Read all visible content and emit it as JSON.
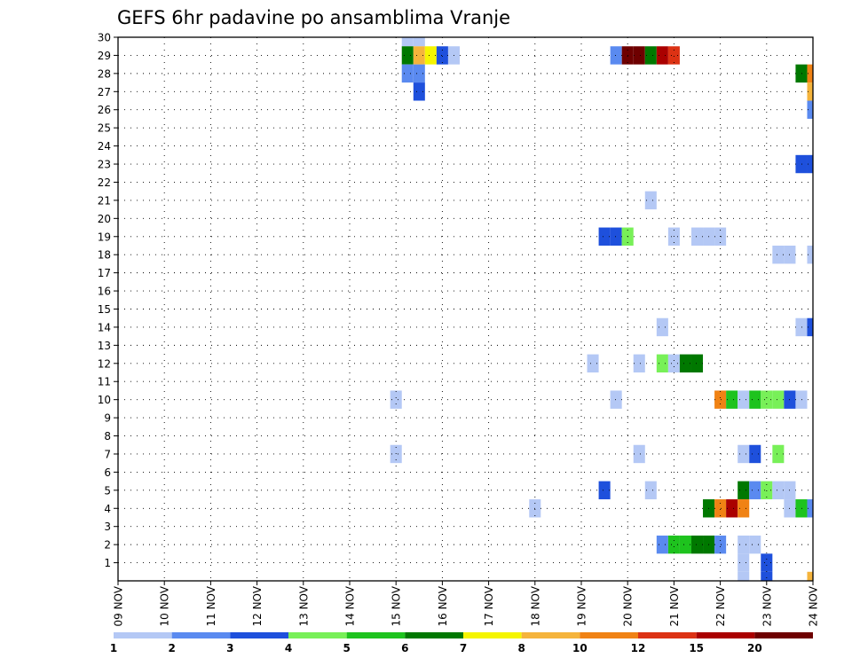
{
  "chart_data": {
    "type": "heatmap",
    "title": "GEFS 6hr padavine po ansamblima Vranje",
    "y_tick_labels": [
      "1",
      "2",
      "3",
      "4",
      "5",
      "6",
      "7",
      "8",
      "9",
      "10",
      "11",
      "12",
      "13",
      "14",
      "15",
      "16",
      "17",
      "18",
      "19",
      "20",
      "21",
      "22",
      "23",
      "24",
      "25",
      "26",
      "27",
      "28",
      "29",
      "30"
    ],
    "x_tick_labels": [
      "09 NOV",
      "10 NOV",
      "11 NOV",
      "12 NOV",
      "13 NOV",
      "14 NOV",
      "15 NOV",
      "16 NOV",
      "17 NOV",
      "18 NOV",
      "19 NOV",
      "20 NOV",
      "21 NOV",
      "22 NOV",
      "23 NOV",
      "24 NOV"
    ],
    "x_range_days": [
      0,
      15
    ],
    "y_range": [
      0,
      30
    ],
    "grid": "dotted",
    "colorbar": {
      "labels": [
        "1",
        "2",
        "3",
        "4",
        "5",
        "6",
        "7",
        "8",
        "10",
        "12",
        "15",
        "20"
      ],
      "colors": [
        "#b4c8f5",
        "#5a8af0",
        "#1e50dc",
        "#78f058",
        "#1ec31e",
        "#007800",
        "#f5f500",
        "#f5b43c",
        "#f08214",
        "#dc3214",
        "#aa0000",
        "#6e0000"
      ]
    },
    "cells": [
      {
        "d": 6.25,
        "m": 30,
        "c": 0
      },
      {
        "d": 6.5,
        "m": 30,
        "c": 0
      },
      {
        "d": 6.25,
        "m": 29,
        "c": 5
      },
      {
        "d": 6.5,
        "m": 29,
        "c": 7
      },
      {
        "d": 6.75,
        "m": 29,
        "c": 6
      },
      {
        "d": 7.0,
        "m": 29,
        "c": 2
      },
      {
        "d": 7.25,
        "m": 29,
        "c": 0
      },
      {
        "d": 10.75,
        "m": 29,
        "c": 1
      },
      {
        "d": 11.0,
        "m": 29,
        "c": 11
      },
      {
        "d": 11.25,
        "m": 29,
        "c": 11
      },
      {
        "d": 11.5,
        "m": 29,
        "c": 5
      },
      {
        "d": 11.75,
        "m": 29,
        "c": 10
      },
      {
        "d": 12.0,
        "m": 29,
        "c": 9
      },
      {
        "d": 6.25,
        "m": 28,
        "c": 1
      },
      {
        "d": 6.5,
        "m": 28,
        "c": 1
      },
      {
        "d": 14.75,
        "m": 28,
        "c": 5
      },
      {
        "d": 15.0,
        "m": 28,
        "c": 8
      },
      {
        "d": 6.5,
        "m": 27,
        "c": 2
      },
      {
        "d": 15.0,
        "m": 27,
        "c": 7
      },
      {
        "d": 15.0,
        "m": 26,
        "c": 1
      },
      {
        "d": 14.75,
        "m": 23,
        "c": 2
      },
      {
        "d": 15.0,
        "m": 23,
        "c": 2
      },
      {
        "d": 11.5,
        "m": 21,
        "c": 0
      },
      {
        "d": 10.5,
        "m": 19,
        "c": 2
      },
      {
        "d": 10.75,
        "m": 19,
        "c": 2
      },
      {
        "d": 11.0,
        "m": 19,
        "c": 3
      },
      {
        "d": 12.0,
        "m": 19,
        "c": 0
      },
      {
        "d": 12.5,
        "m": 19,
        "c": 0
      },
      {
        "d": 12.75,
        "m": 19,
        "c": 0
      },
      {
        "d": 13.0,
        "m": 19,
        "c": 0
      },
      {
        "d": 14.25,
        "m": 18,
        "c": 0
      },
      {
        "d": 14.5,
        "m": 18,
        "c": 0
      },
      {
        "d": 15.0,
        "m": 18,
        "c": 0
      },
      {
        "d": 11.75,
        "m": 14,
        "c": 0
      },
      {
        "d": 14.75,
        "m": 14,
        "c": 0
      },
      {
        "d": 15.0,
        "m": 14,
        "c": 2
      },
      {
        "d": 10.25,
        "m": 12,
        "c": 0
      },
      {
        "d": 11.25,
        "m": 12,
        "c": 0
      },
      {
        "d": 11.75,
        "m": 12,
        "c": 3
      },
      {
        "d": 12.0,
        "m": 12,
        "c": 0
      },
      {
        "d": 12.25,
        "m": 12,
        "c": 5
      },
      {
        "d": 12.5,
        "m": 12,
        "c": 5
      },
      {
        "d": 6.0,
        "m": 10,
        "c": 0
      },
      {
        "d": 10.75,
        "m": 10,
        "c": 0
      },
      {
        "d": 13.0,
        "m": 10,
        "c": 8
      },
      {
        "d": 13.25,
        "m": 10,
        "c": 4
      },
      {
        "d": 13.5,
        "m": 10,
        "c": 0
      },
      {
        "d": 13.75,
        "m": 10,
        "c": 4
      },
      {
        "d": 14.0,
        "m": 10,
        "c": 3
      },
      {
        "d": 14.25,
        "m": 10,
        "c": 3
      },
      {
        "d": 14.5,
        "m": 10,
        "c": 2
      },
      {
        "d": 14.75,
        "m": 10,
        "c": 0
      },
      {
        "d": 6.0,
        "m": 7,
        "c": 0
      },
      {
        "d": 11.25,
        "m": 7,
        "c": 0
      },
      {
        "d": 13.5,
        "m": 7,
        "c": 0
      },
      {
        "d": 13.75,
        "m": 7,
        "c": 2
      },
      {
        "d": 14.25,
        "m": 7,
        "c": 3
      },
      {
        "d": 10.5,
        "m": 5,
        "c": 2
      },
      {
        "d": 11.5,
        "m": 5,
        "c": 0
      },
      {
        "d": 13.5,
        "m": 5,
        "c": 5
      },
      {
        "d": 13.75,
        "m": 5,
        "c": 1
      },
      {
        "d": 14.0,
        "m": 5,
        "c": 3
      },
      {
        "d": 14.25,
        "m": 5,
        "c": 0
      },
      {
        "d": 14.5,
        "m": 5,
        "c": 0
      },
      {
        "d": 9.0,
        "m": 4,
        "c": 0
      },
      {
        "d": 12.75,
        "m": 4,
        "c": 5
      },
      {
        "d": 13.0,
        "m": 4,
        "c": 8
      },
      {
        "d": 13.25,
        "m": 4,
        "c": 10
      },
      {
        "d": 13.5,
        "m": 4,
        "c": 8
      },
      {
        "d": 14.5,
        "m": 4,
        "c": 0
      },
      {
        "d": 14.75,
        "m": 4,
        "c": 4
      },
      {
        "d": 15.0,
        "m": 4,
        "c": 1
      },
      {
        "d": 11.75,
        "m": 2,
        "c": 1
      },
      {
        "d": 12.0,
        "m": 2,
        "c": 4
      },
      {
        "d": 12.25,
        "m": 2,
        "c": 4
      },
      {
        "d": 12.5,
        "m": 2,
        "c": 5
      },
      {
        "d": 12.75,
        "m": 2,
        "c": 5
      },
      {
        "d": 13.0,
        "m": 2,
        "c": 1
      },
      {
        "d": 13.5,
        "m": 2,
        "c": 0
      },
      {
        "d": 13.75,
        "m": 2,
        "c": 0
      },
      {
        "d": 13.5,
        "m": 1,
        "c": 0
      },
      {
        "d": 14.0,
        "m": 1,
        "c": 2
      },
      {
        "d": 13.5,
        "m": 0,
        "c": 0
      },
      {
        "d": 14.0,
        "m": 0,
        "c": 2
      },
      {
        "d": 15.0,
        "m": 0,
        "c": 7
      }
    ]
  }
}
